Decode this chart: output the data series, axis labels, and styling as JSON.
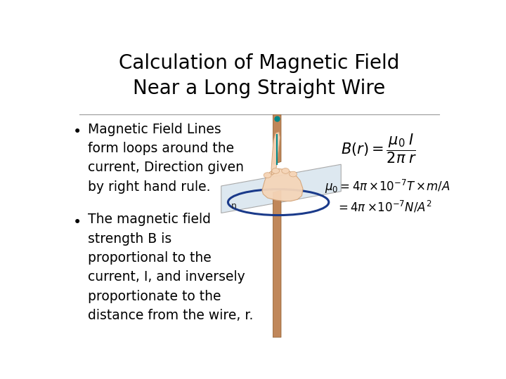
{
  "title": "Calculation of Magnetic Field\nNear a Long Straight Wire",
  "title_fontsize": 20,
  "background_color": "#ffffff",
  "bullet1_lines": [
    "Magnetic Field Lines",
    "form loops around the",
    "current, Direction given",
    "by right hand rule."
  ],
  "bullet2_lines": [
    "The magnetic field",
    "strength B is",
    "proportional to the",
    "current, I, and inversely",
    "proportionate to the",
    "distance from the wire, r."
  ],
  "bullet_fontsize": 13.5,
  "formula1": "$B(r) = \\dfrac{\\mu_0 \\; I}{2\\pi \\; r}$",
  "formula2": "$\\mu_0 = 4\\pi \\times\\!10^{-7} T \\times\\!m / A$",
  "formula3": "$= 4\\pi \\times\\!10^{-7} N / A^2$",
  "text_color": "#000000",
  "divider_color": "#888888"
}
